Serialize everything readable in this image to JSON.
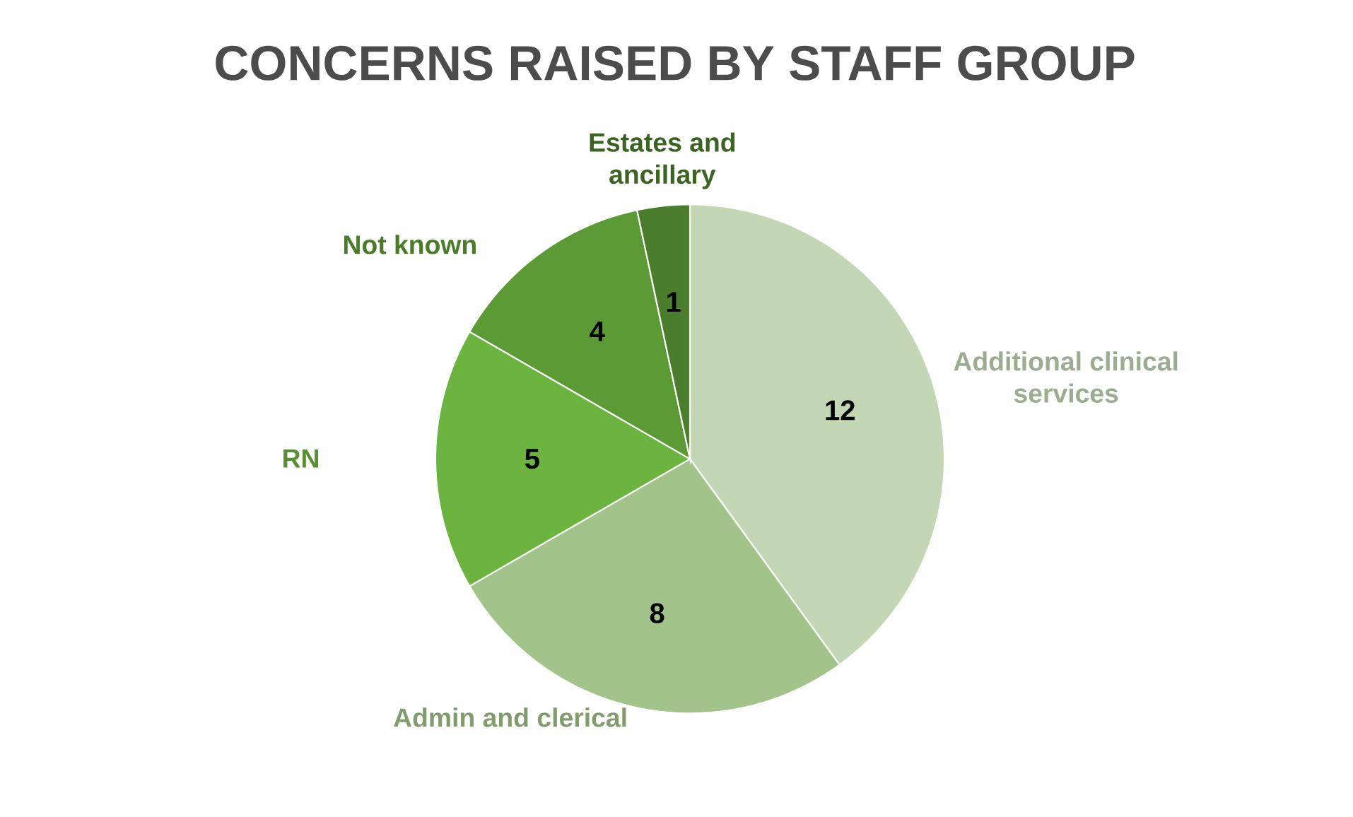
{
  "chart_data": {
    "type": "pie",
    "title": "CONCERNS RAISED BY STAFF GROUP",
    "categories": [
      "Additional clinical services",
      "Admin and clerical",
      "RN",
      "Not known",
      "Estates and ancillary"
    ],
    "values": [
      12,
      8,
      5,
      4,
      1
    ],
    "colors": [
      "#c3d7b5",
      "#a2c38a",
      "#6db33f",
      "#5c9a35",
      "#4a7d2c"
    ],
    "data_labels": true
  }
}
